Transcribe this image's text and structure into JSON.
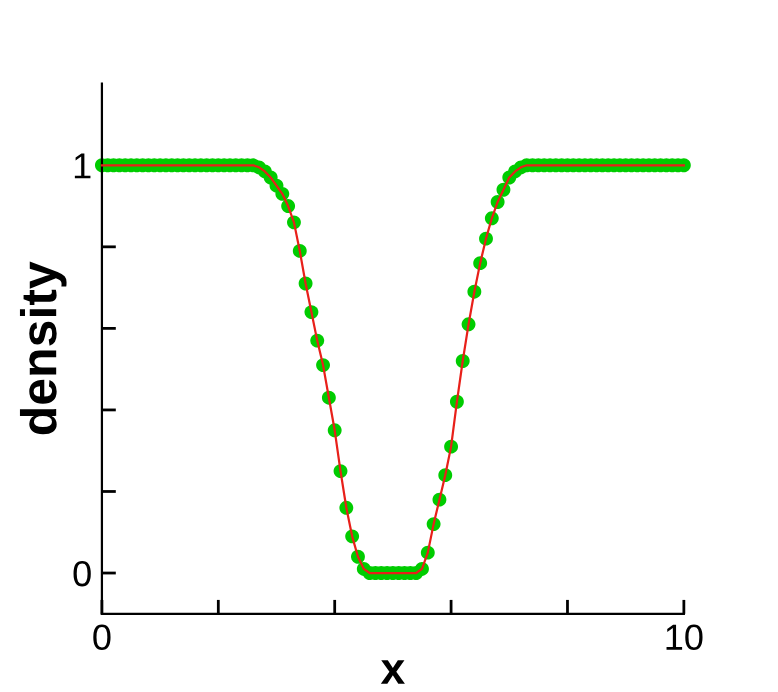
{
  "chart_data": {
    "type": "scatter",
    "xlabel": "x",
    "ylabel": "density",
    "x": [
      0,
      0.1,
      0.2,
      0.3,
      0.4,
      0.5,
      0.6,
      0.7,
      0.8,
      0.9,
      1.0,
      1.1,
      1.2,
      1.3,
      1.4,
      1.5,
      1.6,
      1.7,
      1.8,
      1.9,
      2.0,
      2.1,
      2.2,
      2.3,
      2.4,
      2.5,
      2.6,
      2.7,
      2.8,
      2.9,
      3.0,
      3.1,
      3.2,
      3.3,
      3.4,
      3.5,
      3.6,
      3.7,
      3.8,
      3.9,
      4.0,
      4.1,
      4.2,
      4.3,
      4.4,
      4.5,
      4.6,
      4.7,
      4.8,
      4.9,
      5.0,
      5.1,
      5.2,
      5.3,
      5.4,
      5.5,
      5.6,
      5.7,
      5.8,
      5.9,
      6.0,
      6.1,
      6.2,
      6.3,
      6.4,
      6.5,
      6.6,
      6.7,
      6.8,
      6.9,
      7.0,
      7.1,
      7.2,
      7.3,
      7.4,
      7.5,
      7.6,
      7.7,
      7.8,
      7.9,
      8.0,
      8.1,
      8.2,
      8.3,
      8.4,
      8.5,
      8.6,
      8.7,
      8.8,
      8.9,
      9.0,
      9.1,
      9.2,
      9.3,
      9.4,
      9.5,
      9.6,
      9.7,
      9.8,
      9.9,
      10.0
    ],
    "series": [
      {
        "color": "#00cc00",
        "marker": "circle",
        "values": [
          1,
          1,
          1,
          1,
          1,
          1,
          1,
          1,
          1,
          1,
          1,
          1,
          1,
          1,
          1,
          1,
          1,
          1,
          1,
          1,
          1,
          1,
          1,
          1,
          1,
          1,
          1,
          0.995,
          0.985,
          0.97,
          0.95,
          0.93,
          0.9,
          0.86,
          0.79,
          0.71,
          0.64,
          0.57,
          0.51,
          0.43,
          0.35,
          0.25,
          0.16,
          0.09,
          0.04,
          0.01,
          0,
          0,
          0,
          0,
          0,
          0,
          0,
          0,
          0,
          0.01,
          0.05,
          0.12,
          0.18,
          0.24,
          0.31,
          0.42,
          0.52,
          0.61,
          0.69,
          0.76,
          0.82,
          0.87,
          0.91,
          0.94,
          0.97,
          0.985,
          0.995,
          1,
          1,
          1,
          1,
          1,
          1,
          1,
          1,
          1,
          1,
          1,
          1,
          1,
          1,
          1,
          1,
          1,
          1,
          1,
          1,
          1,
          1,
          1,
          1,
          1,
          1,
          1,
          1
        ]
      },
      {
        "type": "line",
        "color": "#e8201a",
        "line_style": "solid",
        "values": [
          1,
          1,
          1,
          1,
          1,
          1,
          1,
          1,
          1,
          1,
          1,
          1,
          1,
          1,
          1,
          1,
          1,
          1,
          1,
          1,
          1,
          1,
          1,
          1,
          1,
          1,
          1,
          0.995,
          0.985,
          0.97,
          0.95,
          0.93,
          0.9,
          0.86,
          0.79,
          0.71,
          0.64,
          0.57,
          0.51,
          0.43,
          0.35,
          0.25,
          0.16,
          0.09,
          0.04,
          0.01,
          0,
          0,
          0,
          0,
          0,
          0,
          0,
          0,
          0,
          0.01,
          0.05,
          0.12,
          0.18,
          0.24,
          0.31,
          0.42,
          0.52,
          0.61,
          0.69,
          0.76,
          0.82,
          0.87,
          0.91,
          0.94,
          0.97,
          0.985,
          0.995,
          1,
          1,
          1,
          1,
          1,
          1,
          1,
          1,
          1,
          1,
          1,
          1,
          1,
          1,
          1,
          1,
          1,
          1,
          1,
          1,
          1,
          1,
          1,
          1,
          1,
          1,
          1,
          1
        ]
      }
    ],
    "xlim": [
      0,
      10
    ],
    "xticks": [
      0,
      {
        "value": 2,
        "label": null
      },
      {
        "value": 4,
        "label": null
      },
      {
        "value": 6,
        "label": null
      },
      {
        "value": 8,
        "label": null
      },
      10
    ],
    "ylim": [
      -0.1,
      1.2
    ],
    "yticks": [
      0,
      {
        "value": 0.2,
        "label": null
      },
      {
        "value": 0.4,
        "label": null
      },
      {
        "value": 0.6,
        "label": null
      },
      {
        "value": 0.8,
        "label": null
      },
      1
    ],
    "grid": false,
    "legend": false
  }
}
